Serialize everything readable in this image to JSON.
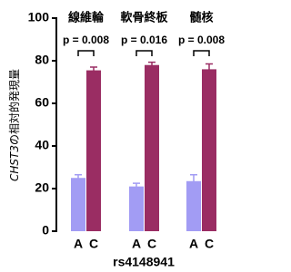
{
  "chart_data": {
    "type": "bar",
    "ylabel_gene": "CHST3",
    "ylabel_rest": "の相対的発現量",
    "xlabel": "rs4148941",
    "ylim": [
      0,
      100
    ],
    "yticks": [
      0,
      20,
      40,
      60,
      80,
      100
    ],
    "colors": [
      "#a29cf4",
      "#9a2d63"
    ],
    "groups": [
      {
        "name": "線維輪",
        "p_label": "p = 0.008",
        "categories": [
          "A",
          "C"
        ],
        "values": [
          25,
          75.5
        ],
        "errors": [
          1.5,
          1.5
        ]
      },
      {
        "name": "軟骨終板",
        "p_label": "p = 0.016",
        "categories": [
          "A",
          "C"
        ],
        "values": [
          21,
          78
        ],
        "errors": [
          1.5,
          1.3
        ]
      },
      {
        "name": "髄核",
        "p_label": "p = 0.008",
        "categories": [
          "A",
          "C"
        ],
        "values": [
          23.5,
          76
        ],
        "errors": [
          3,
          2.5
        ]
      }
    ]
  }
}
